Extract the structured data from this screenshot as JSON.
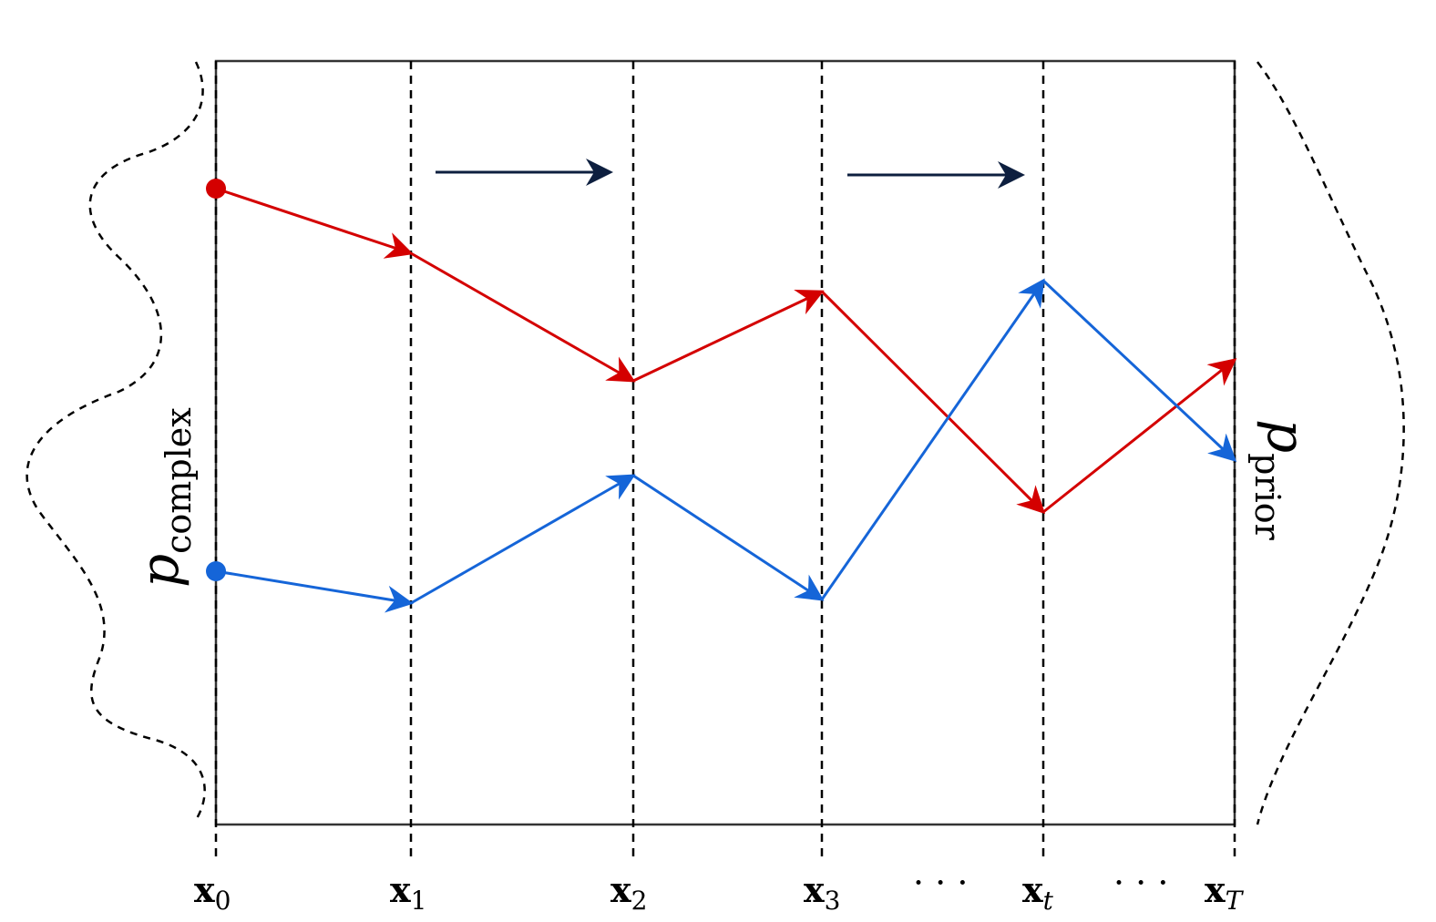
{
  "labels": {
    "left_distribution": {
      "base": "p",
      "sub": "complex"
    },
    "right_distribution": {
      "base": "p",
      "sub": "prior"
    },
    "steps": [
      {
        "base": "x",
        "sub": "0"
      },
      {
        "base": "x",
        "sub": "1"
      },
      {
        "base": "x",
        "sub": "2"
      },
      {
        "base": "x",
        "sub": "3"
      },
      {
        "base": "x",
        "sub": "t"
      },
      {
        "base": "x",
        "sub": "T"
      }
    ],
    "ellipsis": [
      "· · ·",
      "· · ·"
    ]
  },
  "colors": {
    "red_path": "#d40000",
    "blue_path": "#1565d8",
    "direction_arrow": "#0d1f3f",
    "frame": "#333333"
  }
}
